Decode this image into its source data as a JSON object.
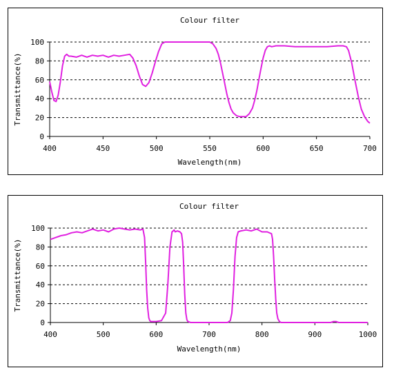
{
  "chart_data": [
    {
      "type": "line",
      "title": "Colour filter",
      "xlabel": "Wavelength(nm)",
      "ylabel": "Transmittance(%)",
      "xlim": [
        400,
        700
      ],
      "ylim": [
        0,
        100
      ],
      "xticks": [
        "400",
        "450",
        "500",
        "550",
        "600",
        "650",
        "700"
      ],
      "yticks": [
        "0",
        "20",
        "40",
        "60",
        "80",
        "100"
      ],
      "grid": "dashed horizontal",
      "line_color": "#E020E0",
      "series": [
        {
          "x": [
            400,
            402,
            404,
            406,
            408,
            410,
            412,
            414,
            416,
            418,
            420,
            425,
            430,
            435,
            440,
            445,
            450,
            455,
            460,
            465,
            470,
            475,
            478,
            481,
            484,
            487,
            490,
            493,
            496,
            499,
            502,
            505,
            508,
            512,
            520,
            530,
            540,
            550,
            553,
            556,
            558,
            560,
            562,
            564,
            566,
            568,
            570,
            572,
            575,
            578,
            581,
            584,
            587,
            590,
            592,
            594,
            596,
            598,
            600,
            602,
            604,
            606,
            608,
            612,
            616,
            620,
            630,
            640,
            650,
            660,
            670,
            675,
            678,
            680,
            683,
            686,
            689,
            692,
            695,
            698,
            700
          ],
          "y": [
            58,
            47,
            38,
            37,
            44,
            58,
            75,
            85,
            87,
            85,
            85,
            84,
            86,
            84,
            86,
            85,
            86,
            84,
            86,
            85,
            86,
            87,
            83,
            75,
            64,
            55,
            53,
            57,
            67,
            79,
            90,
            98,
            100,
            100,
            100,
            100,
            100,
            100,
            98,
            93,
            87,
            78,
            67,
            56,
            45,
            36,
            29,
            25,
            22,
            21,
            21,
            21,
            24,
            30,
            38,
            48,
            60,
            72,
            83,
            91,
            95,
            96,
            95,
            96,
            96,
            96,
            95,
            95,
            95,
            95,
            96,
            96,
            95,
            91,
            78,
            60,
            43,
            29,
            21,
            16,
            14
          ]
        }
      ]
    },
    {
      "type": "line",
      "title": "Colour filter",
      "xlabel": "Wavelength(nm)",
      "ylabel": "Transmittance(%)",
      "xlim": [
        400,
        1000
      ],
      "ylim": [
        0,
        100
      ],
      "xticks": [
        "400",
        "500",
        "600",
        "700",
        "800",
        "900",
        "1000"
      ],
      "yticks": [
        "0",
        "20",
        "40",
        "60",
        "80",
        "100"
      ],
      "grid": "dashed horizontal",
      "line_color": "#E020E0",
      "series": [
        {
          "x": [
            400,
            410,
            420,
            430,
            440,
            450,
            460,
            470,
            480,
            490,
            500,
            510,
            520,
            530,
            540,
            550,
            560,
            570,
            575,
            578,
            580,
            582,
            584,
            586,
            588,
            590,
            595,
            600,
            610,
            618,
            622,
            626,
            630,
            632,
            634,
            636,
            640,
            645,
            648,
            650,
            652,
            654,
            656,
            658,
            660,
            665,
            670,
            680,
            700,
            720,
            735,
            740,
            743,
            746,
            749,
            752,
            755,
            760,
            770,
            780,
            790,
            800,
            810,
            818,
            820,
            822,
            824,
            826,
            828,
            830,
            833,
            836,
            840,
            845,
            850,
            860,
            880,
            900,
            920,
            930,
            935,
            940,
            945,
            960,
            980,
            1000
          ],
          "y": [
            88,
            90,
            92,
            93,
            95,
            96,
            95,
            97,
            99,
            97,
            98,
            96,
            99,
            100,
            99,
            98,
            99,
            98,
            99,
            90,
            65,
            35,
            15,
            5,
            2,
            1,
            1,
            1,
            2,
            10,
            40,
            80,
            96,
            97,
            98,
            96,
            97,
            96,
            94,
            85,
            60,
            30,
            10,
            3,
            1,
            0,
            0,
            0,
            0,
            0,
            0,
            2,
            10,
            35,
            70,
            90,
            96,
            97,
            98,
            97,
            99,
            96,
            96,
            94,
            88,
            70,
            45,
            25,
            10,
            4,
            1,
            0,
            0,
            0,
            0,
            0,
            0,
            0,
            0,
            0,
            1,
            1,
            0,
            0,
            0,
            0
          ]
        }
      ]
    }
  ]
}
